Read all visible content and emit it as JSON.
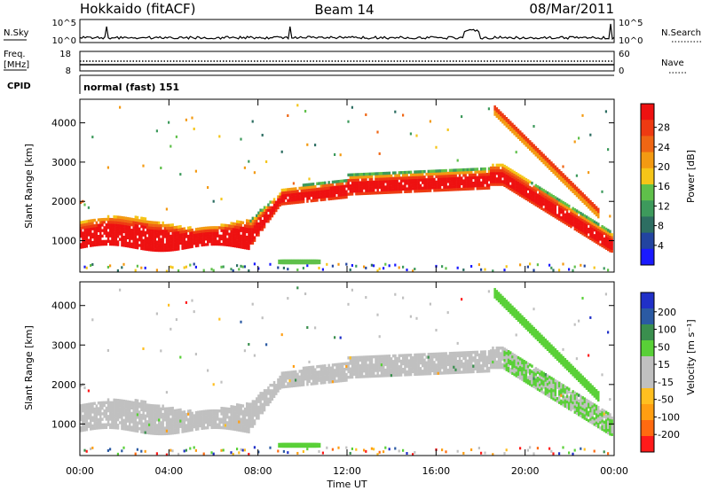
{
  "header": {
    "site": "Hokkaido (fitACF)",
    "beam": "Beam 14",
    "date": "08/Mar/2011"
  },
  "status": {
    "nsky_label": "N.Sky",
    "nsky_ticks": [
      "10^5",
      "10^0"
    ],
    "nsearch_label": "N.Search",
    "nsearch_ticks": [
      "10^5",
      "10^0"
    ],
    "freq_label_top": "Freq.",
    "freq_label_unit": "[MHz]",
    "freq_ticks": [
      "18",
      "8"
    ],
    "nave_label": "Nave",
    "nave_ticks": [
      "60",
      "0"
    ],
    "cpid_label": "CPID",
    "cpid_value": "normal (fast) 151"
  },
  "colors": {
    "power_scale": [
      "#1a1aff",
      "#2244a0",
      "#2d6e62",
      "#3d9a5c",
      "#5fc04a",
      "#f5c518",
      "#f39a12",
      "#ef6614",
      "#ee3a12",
      "#ee1111"
    ],
    "velocity_scale": [
      "#ff1a1a",
      "#ff6a10",
      "#ff9e12",
      "#ffbf20",
      "#c0c0c0",
      "#c0c0c0",
      "#59d037",
      "#3a8f4e",
      "#2b5aa3",
      "#2030c8"
    ],
    "background": "#ffffff"
  },
  "chart_data": [
    {
      "type": "heatmap",
      "quantity": "Power",
      "xlabel": "Time UT",
      "ylabel": "Slant Range [km]",
      "y_ticks": [
        "1000",
        "2000",
        "3000",
        "4000"
      ],
      "y_range": [
        200,
        4600
      ],
      "x_ticks": [
        "00:00",
        "04:00",
        "08:00",
        "12:00",
        "16:00",
        "20:00",
        "00:00"
      ],
      "colorbar_label": "Power [dB]",
      "colorbar_ticks": [
        "4",
        "8",
        "12",
        "16",
        "20",
        "24",
        "28"
      ]
    },
    {
      "type": "heatmap",
      "quantity": "Velocity",
      "xlabel": "Time UT",
      "ylabel": "Slant Range [km]",
      "y_ticks": [
        "1000",
        "2000",
        "3000",
        "4000"
      ],
      "y_range": [
        200,
        4600
      ],
      "x_ticks": [
        "00:00",
        "04:00",
        "08:00",
        "12:00",
        "16:00",
        "20:00",
        "00:00"
      ],
      "colorbar_label": "Velocity [m s⁻¹]",
      "colorbar_ticks": [
        "-200",
        "-100",
        "-50",
        "-15",
        "15",
        "50",
        "100",
        "200"
      ]
    }
  ]
}
